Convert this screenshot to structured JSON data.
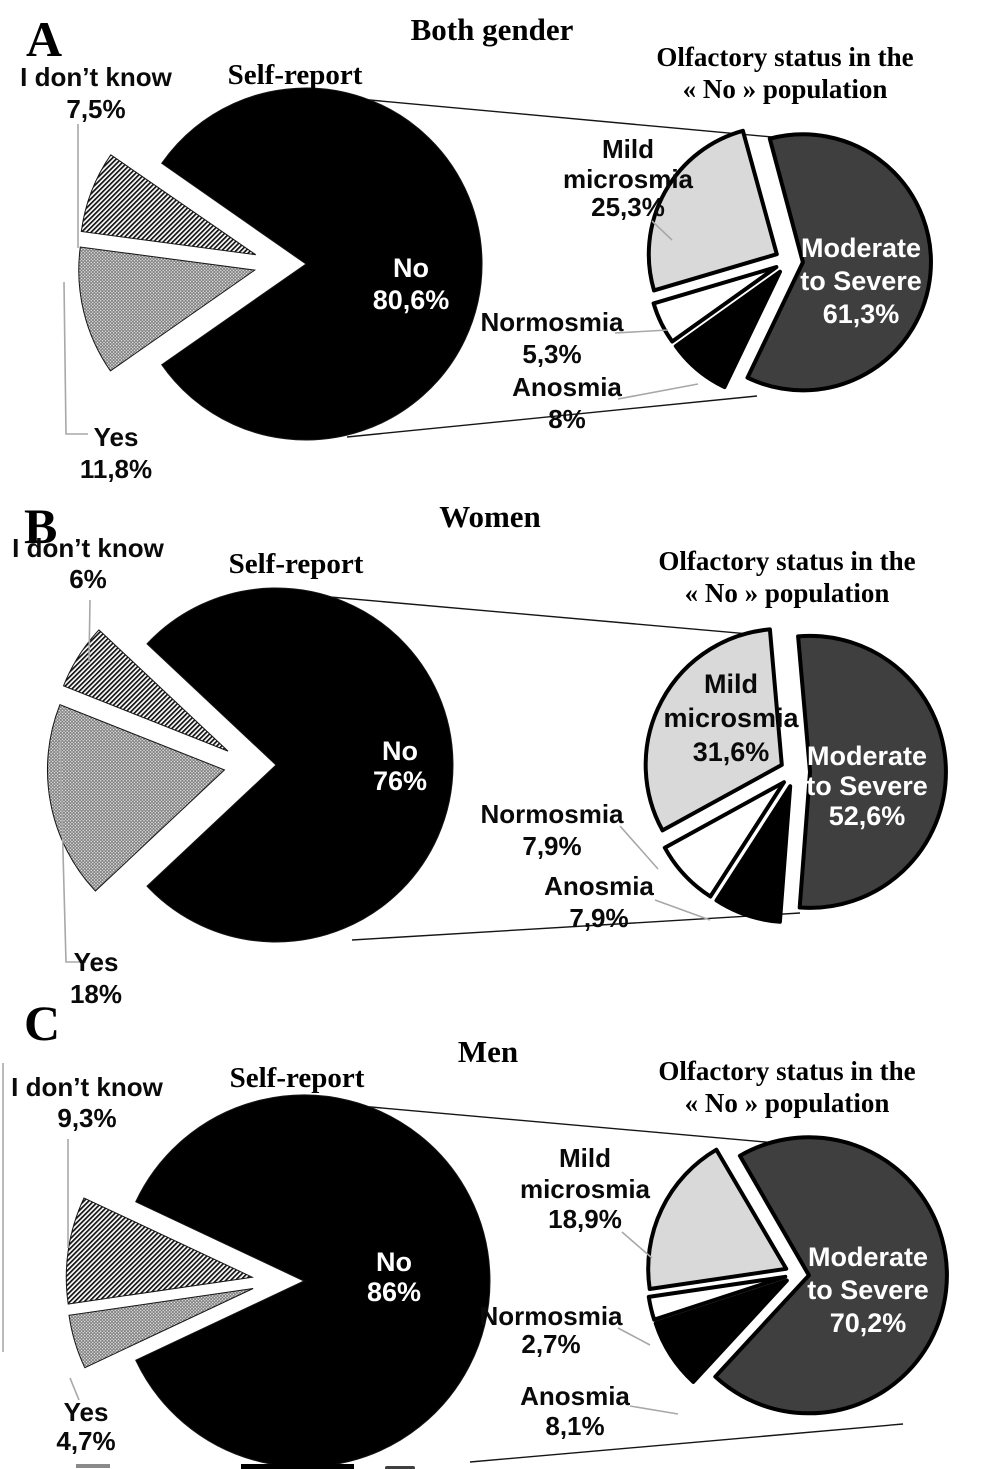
{
  "panels": [
    {
      "letter": "A",
      "group_title": "Both gender",
      "self_report": {
        "chart_title": "Self-report",
        "slices": [
          {
            "id": "no",
            "label": "No",
            "value": 80.6,
            "value_label": "80,6%",
            "fill": "#000000",
            "label_position": "inside"
          },
          {
            "id": "yes",
            "label": "Yes",
            "value": 11.8,
            "value_label": "11,8%",
            "pattern": "crosshatch",
            "label_position": "outside"
          },
          {
            "id": "dont_know",
            "label": "I don’t know",
            "value": 7.5,
            "value_label": "7,5%",
            "pattern": "diagonal-stripes",
            "label_position": "outside"
          }
        ]
      },
      "olfactory": {
        "chart_title_line1": "Olfactory status in the",
        "chart_title_line2": "« No » population",
        "slices": [
          {
            "id": "moderate",
            "label": "Moderate to Severe",
            "label_line1": "Moderate",
            "label_line2": "to Severe",
            "value": 61.3,
            "value_label": "61,3%",
            "fill": "#3f3f3f",
            "label_position": "inside"
          },
          {
            "id": "anosmia",
            "label": "Anosmia",
            "value": 8,
            "value_label": "8%",
            "fill": "#000000",
            "label_position": "outside"
          },
          {
            "id": "normosmia",
            "label": "Normosmia",
            "value": 5.3,
            "value_label": "5,3%",
            "fill": "#ffffff",
            "label_position": "outside"
          },
          {
            "id": "mild",
            "label": "Mild microsmia",
            "label_line1": "Mild",
            "label_line2": "microsmia",
            "value": 25.3,
            "value_label": "25,3%",
            "fill": "#d9d9d9",
            "label_position": "outside"
          }
        ]
      }
    },
    {
      "letter": "B",
      "group_title": "Women",
      "self_report": {
        "chart_title": "Self-report",
        "slices": [
          {
            "id": "no",
            "label": "No",
            "value": 76,
            "value_label": "76%",
            "fill": "#000000",
            "label_position": "inside"
          },
          {
            "id": "yes",
            "label": "Yes",
            "value": 18,
            "value_label": "18%",
            "pattern": "crosshatch",
            "label_position": "outside"
          },
          {
            "id": "dont_know",
            "label": "I don’t know",
            "value": 6,
            "value_label": "6%",
            "pattern": "diagonal-stripes",
            "label_position": "outside"
          }
        ]
      },
      "olfactory": {
        "chart_title_line1": "Olfactory status in the",
        "chart_title_line2": "« No » population",
        "slices": [
          {
            "id": "moderate",
            "label": "Moderate to Severe",
            "label_line1": "Moderate",
            "label_line2": "to Severe",
            "value": 52.6,
            "value_label": "52,6%",
            "fill": "#3f3f3f",
            "label_position": "inside"
          },
          {
            "id": "anosmia",
            "label": "Anosmia",
            "value": 7.9,
            "value_label": "7,9%",
            "fill": "#000000",
            "label_position": "outside"
          },
          {
            "id": "normosmia",
            "label": "Normosmia",
            "value": 7.9,
            "value_label": "7,9%",
            "fill": "#ffffff",
            "label_position": "outside"
          },
          {
            "id": "mild",
            "label": "Mild microsmia",
            "label_line1": "Mild",
            "label_line2": "microsmia",
            "value": 31.6,
            "value_label": "31,6%",
            "fill": "#d9d9d9",
            "label_position": "inside"
          }
        ]
      }
    },
    {
      "letter": "C",
      "group_title": "Men",
      "self_report": {
        "chart_title": "Self-report",
        "slices": [
          {
            "id": "no",
            "label": "No",
            "value": 86,
            "value_label": "86%",
            "fill": "#000000",
            "label_position": "inside"
          },
          {
            "id": "yes",
            "label": "Yes",
            "value": 4.7,
            "value_label": "4,7%",
            "pattern": "crosshatch",
            "label_position": "outside"
          },
          {
            "id": "dont_know",
            "label": "I don’t know",
            "value": 9.3,
            "value_label": "9,3%",
            "pattern": "diagonal-stripes",
            "label_position": "outside"
          }
        ]
      },
      "olfactory": {
        "chart_title_line1": "Olfactory status in the",
        "chart_title_line2": "« No » population",
        "slices": [
          {
            "id": "moderate",
            "label": "Moderate to Severe",
            "label_line1": "Moderate",
            "label_line2": "to Severe",
            "value": 70.2,
            "value_label": "70,2%",
            "fill": "#3f3f3f",
            "label_position": "inside"
          },
          {
            "id": "anosmia",
            "label": "Anosmia",
            "value": 8.1,
            "value_label": "8,1%",
            "fill": "#000000",
            "label_position": "outside"
          },
          {
            "id": "normosmia",
            "label": "Normosmia",
            "value": 2.7,
            "value_label": "2,7%",
            "fill": "#ffffff",
            "label_position": "outside"
          },
          {
            "id": "mild",
            "label": "Mild microsmia",
            "label_line1": "Mild",
            "label_line2": "microsmia",
            "value": 18.9,
            "value_label": "18,9%",
            "fill": "#d9d9d9",
            "label_position": "outside"
          }
        ]
      }
    }
  ],
  "colors": {
    "pie_black": "#000000",
    "moderate_dark_gray": "#3f3f3f",
    "mild_light_gray": "#d9d9d9",
    "normosmia_white": "#ffffff",
    "leader_gray": "#a8a8a8",
    "text_white": "#ffffff",
    "text_black": "#0a0a0a"
  },
  "chart_data": [
    {
      "panel": "A",
      "group": "Both gender",
      "charts": [
        {
          "type": "pie",
          "title": "Self-report",
          "labels": [
            "No",
            "Yes",
            "I don’t know"
          ],
          "values": [
            80.6,
            11.8,
            7.5
          ],
          "style": [
            "solid black",
            "gray crosshatch pattern",
            "black diagonal stripes pattern"
          ],
          "exploded": true,
          "legend_position": "none"
        },
        {
          "type": "pie",
          "title": "Olfactory status in the « No » population",
          "labels": [
            "Moderate to Severe",
            "Anosmia",
            "Normosmia",
            "Mild microsmia"
          ],
          "values": [
            61.3,
            8,
            5.3,
            25.3
          ],
          "style": [
            "dark gray",
            "black",
            "white",
            "light gray"
          ],
          "exploded": true,
          "legend_position": "none"
        }
      ]
    },
    {
      "panel": "B",
      "group": "Women",
      "charts": [
        {
          "type": "pie",
          "title": "Self-report",
          "labels": [
            "No",
            "Yes",
            "I don’t know"
          ],
          "values": [
            76,
            18,
            6
          ],
          "style": [
            "solid black",
            "gray crosshatch pattern",
            "black diagonal stripes pattern"
          ],
          "exploded": true,
          "legend_position": "none"
        },
        {
          "type": "pie",
          "title": "Olfactory status in the « No » population",
          "labels": [
            "Moderate to Severe",
            "Anosmia",
            "Normosmia",
            "Mild microsmia"
          ],
          "values": [
            52.6,
            7.9,
            7.9,
            31.6
          ],
          "style": [
            "dark gray",
            "black",
            "white",
            "light gray"
          ],
          "exploded": true,
          "legend_position": "none"
        }
      ]
    },
    {
      "panel": "C",
      "group": "Men",
      "charts": [
        {
          "type": "pie",
          "title": "Self-report",
          "labels": [
            "No",
            "Yes",
            "I don’t know"
          ],
          "values": [
            86,
            4.7,
            9.3
          ],
          "style": [
            "solid black",
            "gray crosshatch pattern",
            "black diagonal stripes pattern"
          ],
          "exploded": true,
          "legend_position": "none"
        },
        {
          "type": "pie",
          "title": "Olfactory status in the « No » population",
          "labels": [
            "Moderate to Severe",
            "Anosmia",
            "Normosmia",
            "Mild microsmia"
          ],
          "values": [
            70.2,
            8.1,
            2.7,
            18.9
          ],
          "style": [
            "dark gray",
            "black",
            "white",
            "light gray"
          ],
          "exploded": true,
          "legend_position": "none"
        }
      ]
    }
  ]
}
